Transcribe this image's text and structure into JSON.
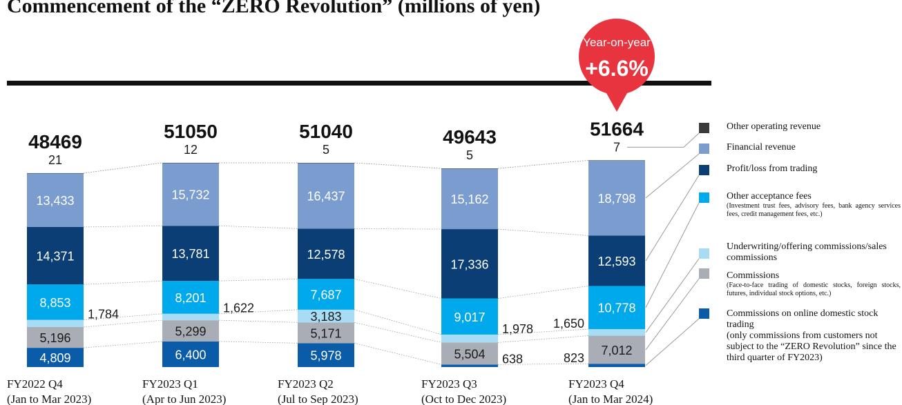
{
  "chart_data": {
    "type": "stacked_bar",
    "title": "Commencement of the “ZERO Revolution” (millions of yen)",
    "annotation": {
      "line1": "Year-on-year",
      "line2": "+6.6%"
    },
    "categories": [
      "FY2022 Q4",
      "FY2023 Q1",
      "FY2023 Q2",
      "FY2023 Q3",
      "FY2023 Q4"
    ],
    "category_periods": [
      "(Jan to Mar 2023)",
      "(Apr to Jun 2023)",
      "(Jul to Sep 2023)",
      "(Oct to Dec 2023)",
      "(Jan to Mar 2024)"
    ],
    "totals": [
      48469,
      51050,
      51040,
      49643,
      51664
    ],
    "total_labels": [
      "48,469",
      "51,050",
      "51,040",
      "49,643",
      "51,664"
    ],
    "series": [
      {
        "name": "Commissions on online domestic stock trading",
        "note": "(only commissions from customers not subject to the “ZERO Revolution” since the third quarter of FY2023)",
        "color": "#0b5ca8",
        "label_color": "#ffffff",
        "values": [
          4809,
          6400,
          5978,
          638,
          823
        ],
        "value_labels": [
          "4,809",
          "6,400",
          "5,978",
          "638",
          "823"
        ]
      },
      {
        "name": "Commissions",
        "note": "(Face-to-face trading of domestic stocks, foreign stocks, futures, individual stock options, etc.)",
        "color": "#a9adb5",
        "label_color": "#1a1a1a",
        "values": [
          5196,
          5299,
          5171,
          5504,
          7012
        ],
        "value_labels": [
          "5,196",
          "5,299",
          "5,171",
          "5,504",
          "7,012"
        ]
      },
      {
        "name": "Underwriting/offering commissions/sales commissions",
        "color": "#a8dcf5",
        "label_color": "#1a1a1a",
        "values": [
          1784,
          1622,
          3183,
          1978,
          1650
        ],
        "value_labels": [
          "1,784",
          "1,622",
          "3,183",
          "1,978",
          "1,650"
        ]
      },
      {
        "name": "Other acceptance fees",
        "note": "(Investment trust fees, advisory fees, bank agency services fees, credit management fees, etc.)",
        "color": "#00a9ec",
        "label_color": "#ffffff",
        "values": [
          8853,
          8201,
          7687,
          9017,
          10778
        ],
        "value_labels": [
          "8,853",
          "8,201",
          "7,687",
          "9,017",
          "10,778"
        ]
      },
      {
        "name": "Profit/loss from trading",
        "color": "#0b3e75",
        "label_color": "#ffffff",
        "values": [
          14371,
          13781,
          12578,
          17336,
          12593
        ],
        "value_labels": [
          "14,371",
          "13,781",
          "12,578",
          "17,336",
          "12,593"
        ]
      },
      {
        "name": "Financial revenue",
        "color": "#7a9ccf",
        "label_color": "#ffffff",
        "values": [
          13433,
          15732,
          16437,
          15162,
          18798
        ],
        "value_labels": [
          "13,433",
          "15,732",
          "16,437",
          "15,162",
          "18,798"
        ]
      },
      {
        "name": "Other operating revenue",
        "color": "#3a3a3a",
        "label_color": "#1a1a1a",
        "values": [
          21,
          12,
          5,
          5,
          7
        ]
      }
    ]
  }
}
